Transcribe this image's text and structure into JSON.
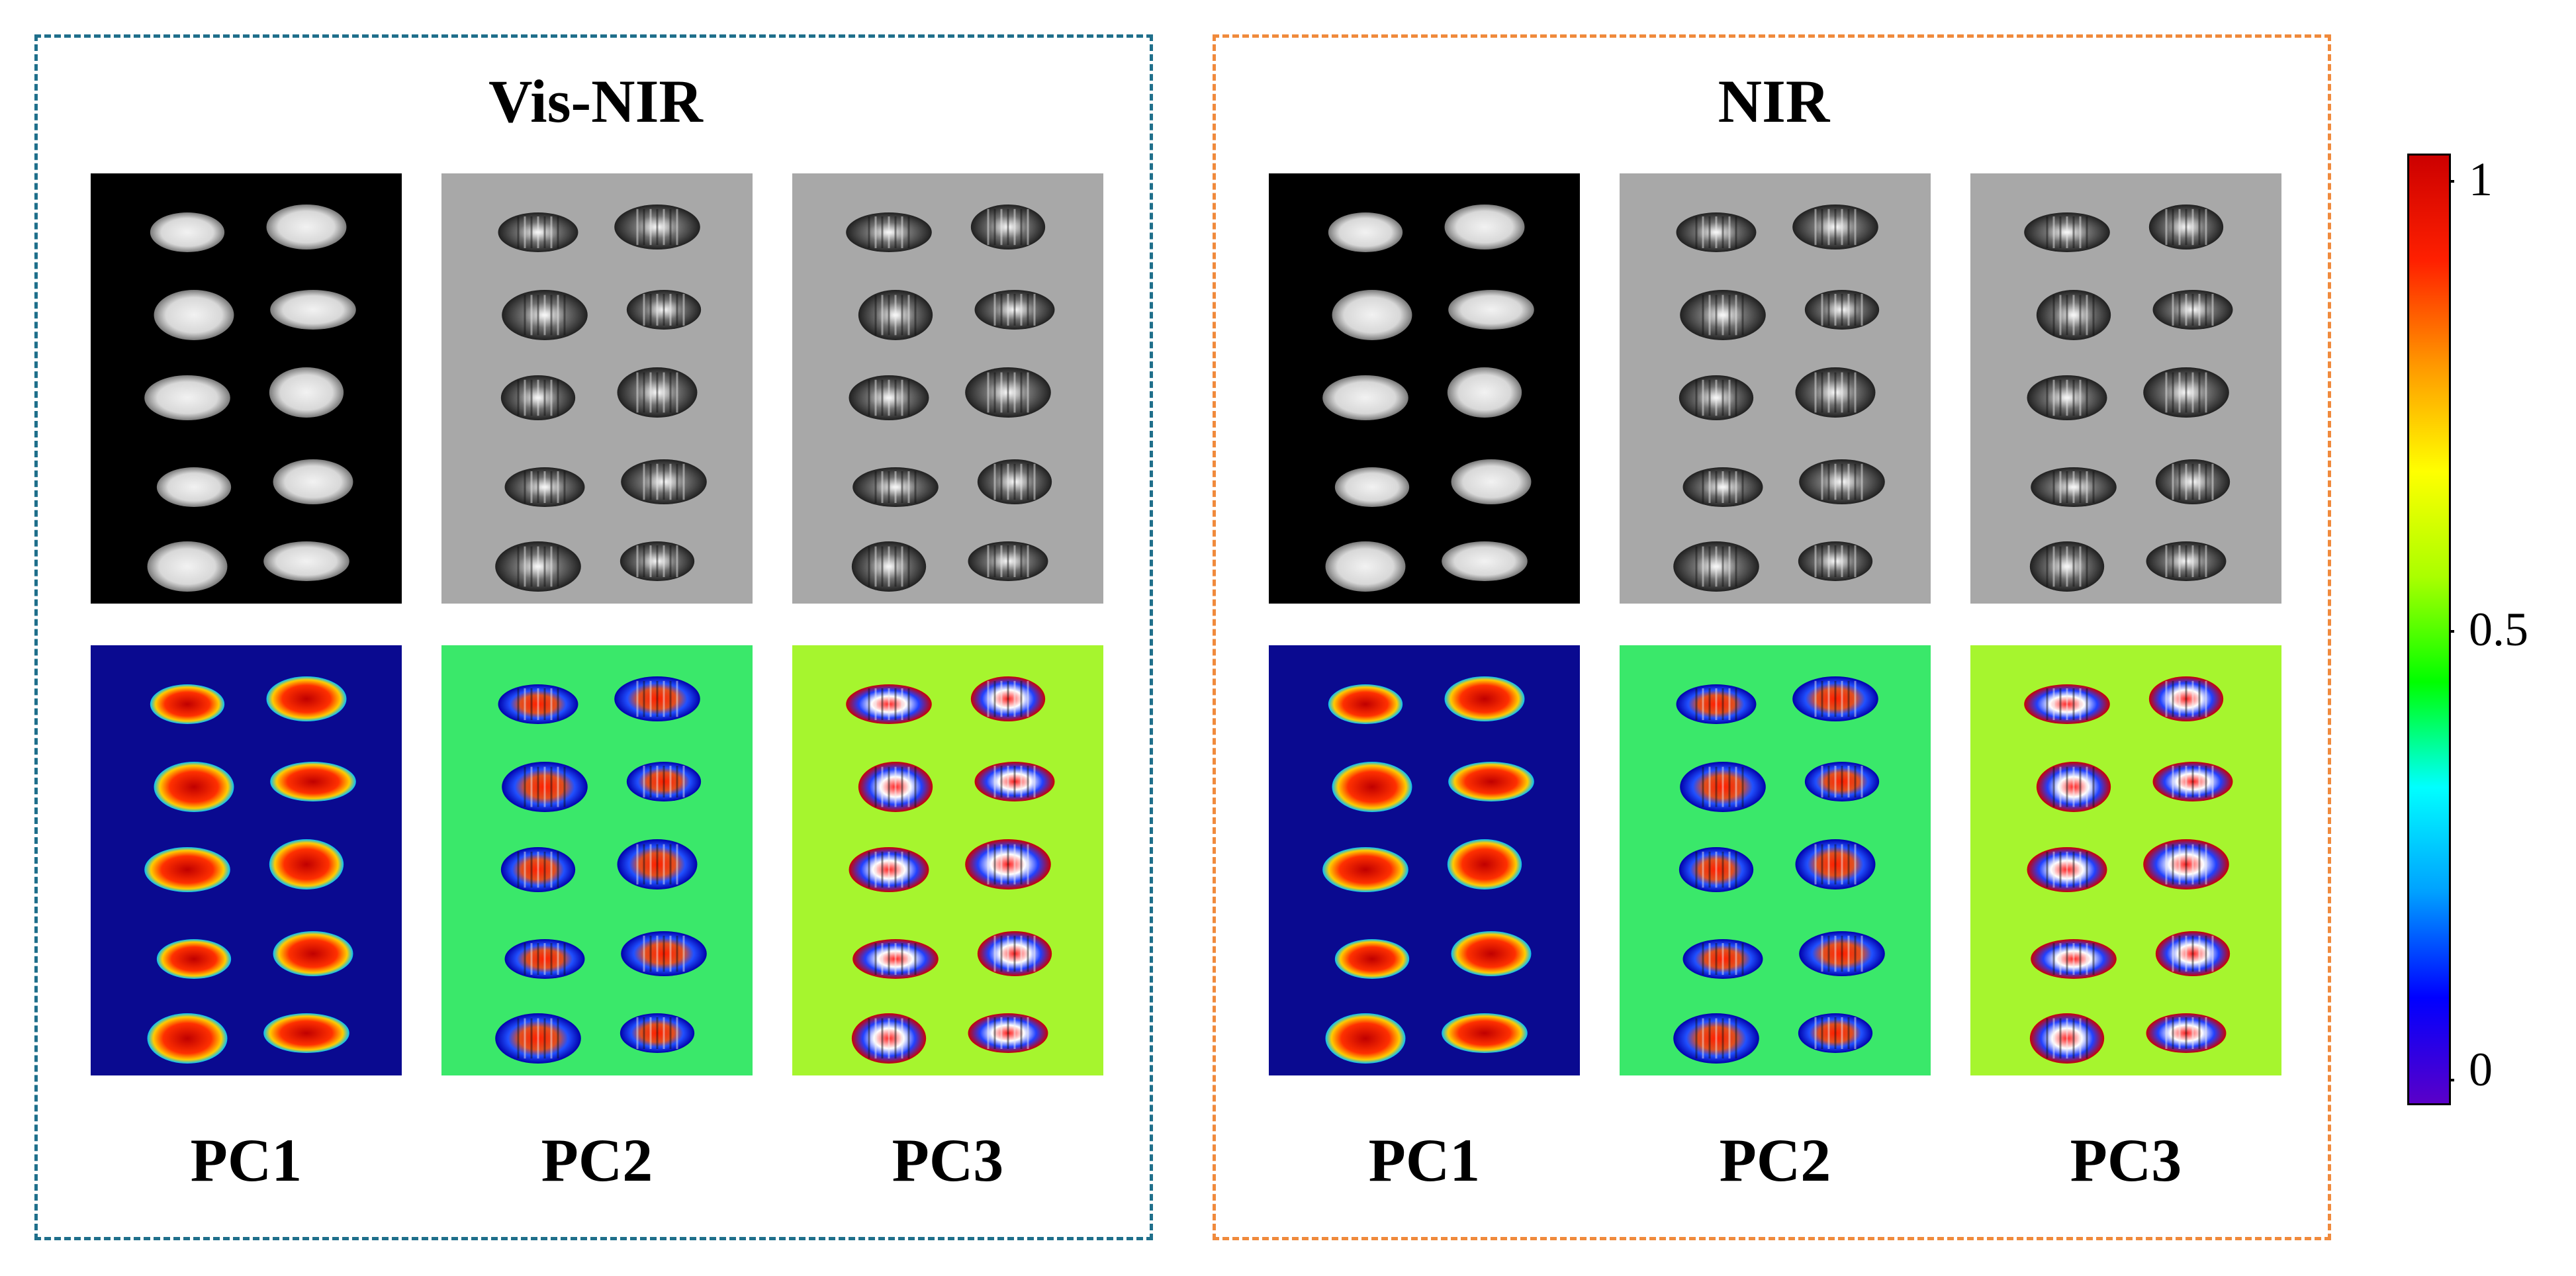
{
  "groups": [
    {
      "title": "Vis-NIR",
      "border_color": "#1f6f8b",
      "pc_labels": [
        "PC1",
        "PC2",
        "PC3"
      ]
    },
    {
      "title": "NIR",
      "border_color": "#f08a3c",
      "pc_labels": [
        "PC1",
        "PC2",
        "PC3"
      ]
    }
  ],
  "rows": [
    "grayscale",
    "pseudocolor"
  ],
  "colorbar": {
    "ticks": [
      "1",
      "0.5",
      "0"
    ],
    "gradient": [
      "#5a00c8",
      "#0000ff",
      "#00a0ff",
      "#00ffff",
      "#00ff00",
      "#aaff00",
      "#ffff00",
      "#ff9900",
      "#ff2000",
      "#cc0000"
    ]
  },
  "colors": {
    "pc1_gray_bg": "#000000",
    "pc23_gray_bg": "#a8a8a8",
    "pc1_color_bg": "#0a0a90",
    "pc2_color_bg": "#3ae86a",
    "pc3_color_bg": "#a6f52e"
  }
}
